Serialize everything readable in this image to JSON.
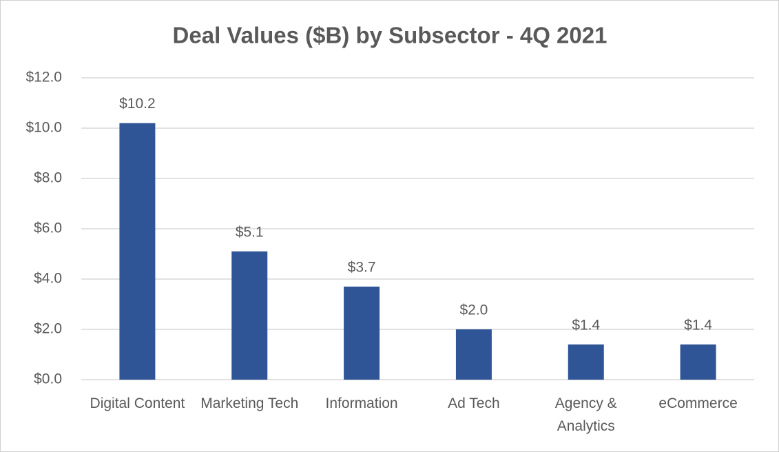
{
  "chart_data": {
    "type": "bar",
    "title": "Deal Values ($B) by Subsector - 4Q 2021",
    "categories": [
      "Digital Content",
      "Marketing Tech",
      "Information",
      "Ad Tech",
      "Agency & Analytics",
      "eCommerce"
    ],
    "values": [
      10.2,
      5.1,
      3.7,
      2.0,
      1.4,
      1.4
    ],
    "value_labels": [
      "$10.2",
      "$5.1",
      "$3.7",
      "$2.0",
      "$1.4",
      "$1.4"
    ],
    "color": "#2f5597",
    "ylim": [
      0,
      12
    ],
    "yticks": [
      {
        "value": 0,
        "label": "$0.0"
      },
      {
        "value": 2,
        "label": "$2.0"
      },
      {
        "value": 4,
        "label": "$4.0"
      },
      {
        "value": 6,
        "label": "$6.0"
      },
      {
        "value": 8,
        "label": "$8.0"
      },
      {
        "value": 10,
        "label": "$10.0"
      },
      {
        "value": 12,
        "label": "$12.0"
      }
    ],
    "grid": true
  }
}
